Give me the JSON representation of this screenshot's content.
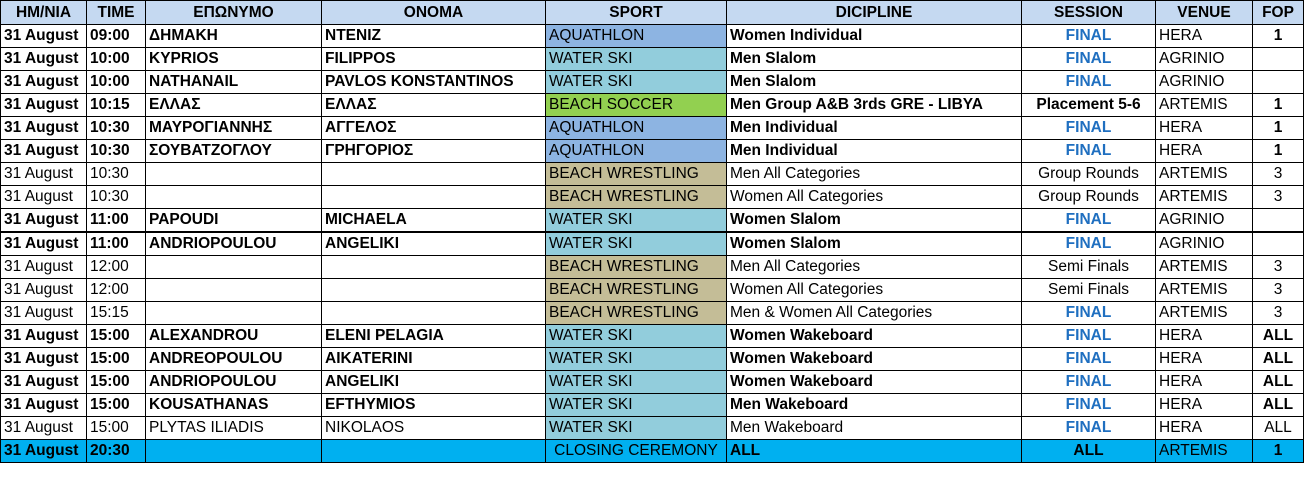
{
  "headers": {
    "date": "ΗΜ/ΝΙΑ",
    "time": "TIME",
    "surname": "ΕΠΩΝΥΜΟ",
    "name": "ΟΝΟΜΑ",
    "sport": "SPORT",
    "discipline": "DICIPLINE",
    "session": "SESSION",
    "venue": "VENUE",
    "fop": "FOP"
  },
  "colors": {
    "header_bg": "#c5d9f1",
    "aquathlon": "#8db4e2",
    "water_ski": "#92cddc",
    "beach_soccer": "#92d050",
    "beach_wrestling": "#c4bd97",
    "ceremony": "#00b0f0",
    "final_text": "#1f6fc0"
  },
  "rows": [
    {
      "date": "31 August",
      "time": "09:00",
      "surname": "ΔΗΜΑΚΗ",
      "name": "ΝΤΕΝΙΖ",
      "sport": "AQUATHLON",
      "sport_color": "#8db4e2",
      "discipline": "Women Individual",
      "session": "FINAL",
      "venue": "HERA",
      "fop": "1",
      "bold": true
    },
    {
      "date": "31 August",
      "time": "10:00",
      "surname": "KYPRIOS",
      "name": "FILIPPOS",
      "sport": "WATER SKI",
      "sport_color": "#92cddc",
      "discipline": "Men Slalom",
      "session": "FINAL",
      "venue": "AGRINIO",
      "fop": "",
      "bold": true
    },
    {
      "date": "31 August",
      "time": "10:00",
      "surname": "NATHANAIL",
      "name": "PAVLOS KONSTANTINOS",
      "sport": "WATER SKI",
      "sport_color": "#92cddc",
      "discipline": "Men Slalom",
      "session": "FINAL",
      "venue": "AGRINIO",
      "fop": "",
      "bold": true
    },
    {
      "date": "31 August",
      "time": "10:15",
      "surname": "ΕΛΛΑΣ",
      "name": "ΕΛΛΑΣ",
      "sport": "BEACH SOCCER",
      "sport_color": "#92d050",
      "discipline": "Men Group A&B 3rds GRE - LIBYA",
      "session": "Placement 5-6",
      "venue": "ARTEMIS",
      "fop": "1",
      "bold": true
    },
    {
      "date": "31 August",
      "time": "10:30",
      "surname": "ΜΑΥΡΟΓΙΑΝΝΗΣ",
      "name": "ΑΓΓΕΛΟΣ",
      "sport": "AQUATHLON",
      "sport_color": "#8db4e2",
      "discipline": "Men Individual",
      "session": "FINAL",
      "venue": "HERA",
      "fop": "1",
      "bold": true
    },
    {
      "date": "31 August",
      "time": "10:30",
      "surname": "ΣΟΥΒΑΤΖΟΓΛΟΥ",
      "name": "ΓΡΗΓΟΡΙΟΣ",
      "sport": "AQUATHLON",
      "sport_color": "#8db4e2",
      "discipline": "Men Individual",
      "session": "FINAL",
      "venue": "HERA",
      "fop": "1",
      "bold": true
    },
    {
      "date": "31 August",
      "time": "10:30",
      "surname": "",
      "name": "",
      "sport": "BEACH WRESTLING",
      "sport_color": "#c4bd97",
      "discipline": "Men All Categories",
      "session": "Group Rounds",
      "venue": "ARTEMIS",
      "fop": "3",
      "bold": false
    },
    {
      "date": "31 August",
      "time": "10:30",
      "surname": "",
      "name": "",
      "sport": "BEACH WRESTLING",
      "sport_color": "#c4bd97",
      "discipline": "Women All Categories",
      "session": "Group Rounds",
      "venue": "ARTEMIS",
      "fop": "3",
      "bold": false
    },
    {
      "date": "31 August",
      "time": "11:00",
      "surname": "PAPOUDI",
      "name": "MICHAELA",
      "sport": "WATER SKI",
      "sport_color": "#92cddc",
      "discipline": "Women Slalom",
      "session": "FINAL",
      "venue": "AGRINIO",
      "fop": "",
      "bold": true,
      "thick": true
    },
    {
      "date": "31 August",
      "time": "11:00",
      "surname": "ANDRIOPOULOU",
      "name": "ANGELIKI",
      "sport": "WATER SKI",
      "sport_color": "#92cddc",
      "discipline": "Women Slalom",
      "session": "FINAL",
      "venue": "AGRINIO",
      "fop": "",
      "bold": true
    },
    {
      "date": "31 August",
      "time": "12:00",
      "surname": "",
      "name": "",
      "sport": "BEACH WRESTLING",
      "sport_color": "#c4bd97",
      "discipline": "Men All Categories",
      "session": "Semi Finals",
      "venue": "ARTEMIS",
      "fop": "3",
      "bold": false
    },
    {
      "date": "31 August",
      "time": "12:00",
      "surname": "",
      "name": "",
      "sport": "BEACH WRESTLING",
      "sport_color": "#c4bd97",
      "discipline": "Women All Categories",
      "session": "Semi Finals",
      "venue": "ARTEMIS",
      "fop": "3",
      "bold": false
    },
    {
      "date": "31 August",
      "time": "15:15",
      "surname": "",
      "name": "",
      "sport": "BEACH WRESTLING",
      "sport_color": "#c4bd97",
      "discipline": "Men & Women All Categories",
      "session": "FINAL",
      "venue": "ARTEMIS",
      "fop": "3",
      "bold": false
    },
    {
      "date": "31 August",
      "time": "15:00",
      "surname": "ALEXANDROU",
      "name": "ELENI PELAGIA",
      "sport": "WATER SKI",
      "sport_color": "#92cddc",
      "discipline": "Women Wakeboard",
      "session": "FINAL",
      "venue": "HERA",
      "fop": "ALL",
      "bold": true
    },
    {
      "date": "31 August",
      "time": "15:00",
      "surname": "ANDREOPOULOU",
      "name": "AIKATERINI",
      "sport": "WATER SKI",
      "sport_color": "#92cddc",
      "discipline": "Women Wakeboard",
      "session": "FINAL",
      "venue": "HERA",
      "fop": "ALL",
      "bold": true
    },
    {
      "date": "31 August",
      "time": "15:00",
      "surname": "ANDRIOPOULOU",
      "name": "ANGELIKI",
      "sport": "WATER SKI",
      "sport_color": "#92cddc",
      "discipline": "Women Wakeboard",
      "session": "FINAL",
      "venue": "HERA",
      "fop": "ALL",
      "bold": true
    },
    {
      "date": "31 August",
      "time": "15:00",
      "surname": "KOUSATHANAS",
      "name": "EFTHYMIOS",
      "sport": "WATER SKI",
      "sport_color": "#92cddc",
      "discipline": "Men Wakeboard",
      "session": "FINAL",
      "venue": "HERA",
      "fop": "ALL",
      "bold": true
    },
    {
      "date": "31 August",
      "time": "15:00",
      "surname": "PLYTAS ILIADIS",
      "name": "NIKOLAOS",
      "sport": "WATER SKI",
      "sport_color": "#92cddc",
      "discipline": "Men Wakeboard",
      "session": "FINAL",
      "venue": "HERA",
      "fop": "ALL",
      "bold": false
    },
    {
      "date": "31 August",
      "time": "20:30",
      "surname": "",
      "name": "",
      "sport": "CLOSING CEREMONY",
      "sport_color": "#00b0f0",
      "discipline": "ALL",
      "session": "ALL",
      "venue": "ARTEMIS",
      "fop": "1",
      "bold": true,
      "ceremony": true
    }
  ]
}
